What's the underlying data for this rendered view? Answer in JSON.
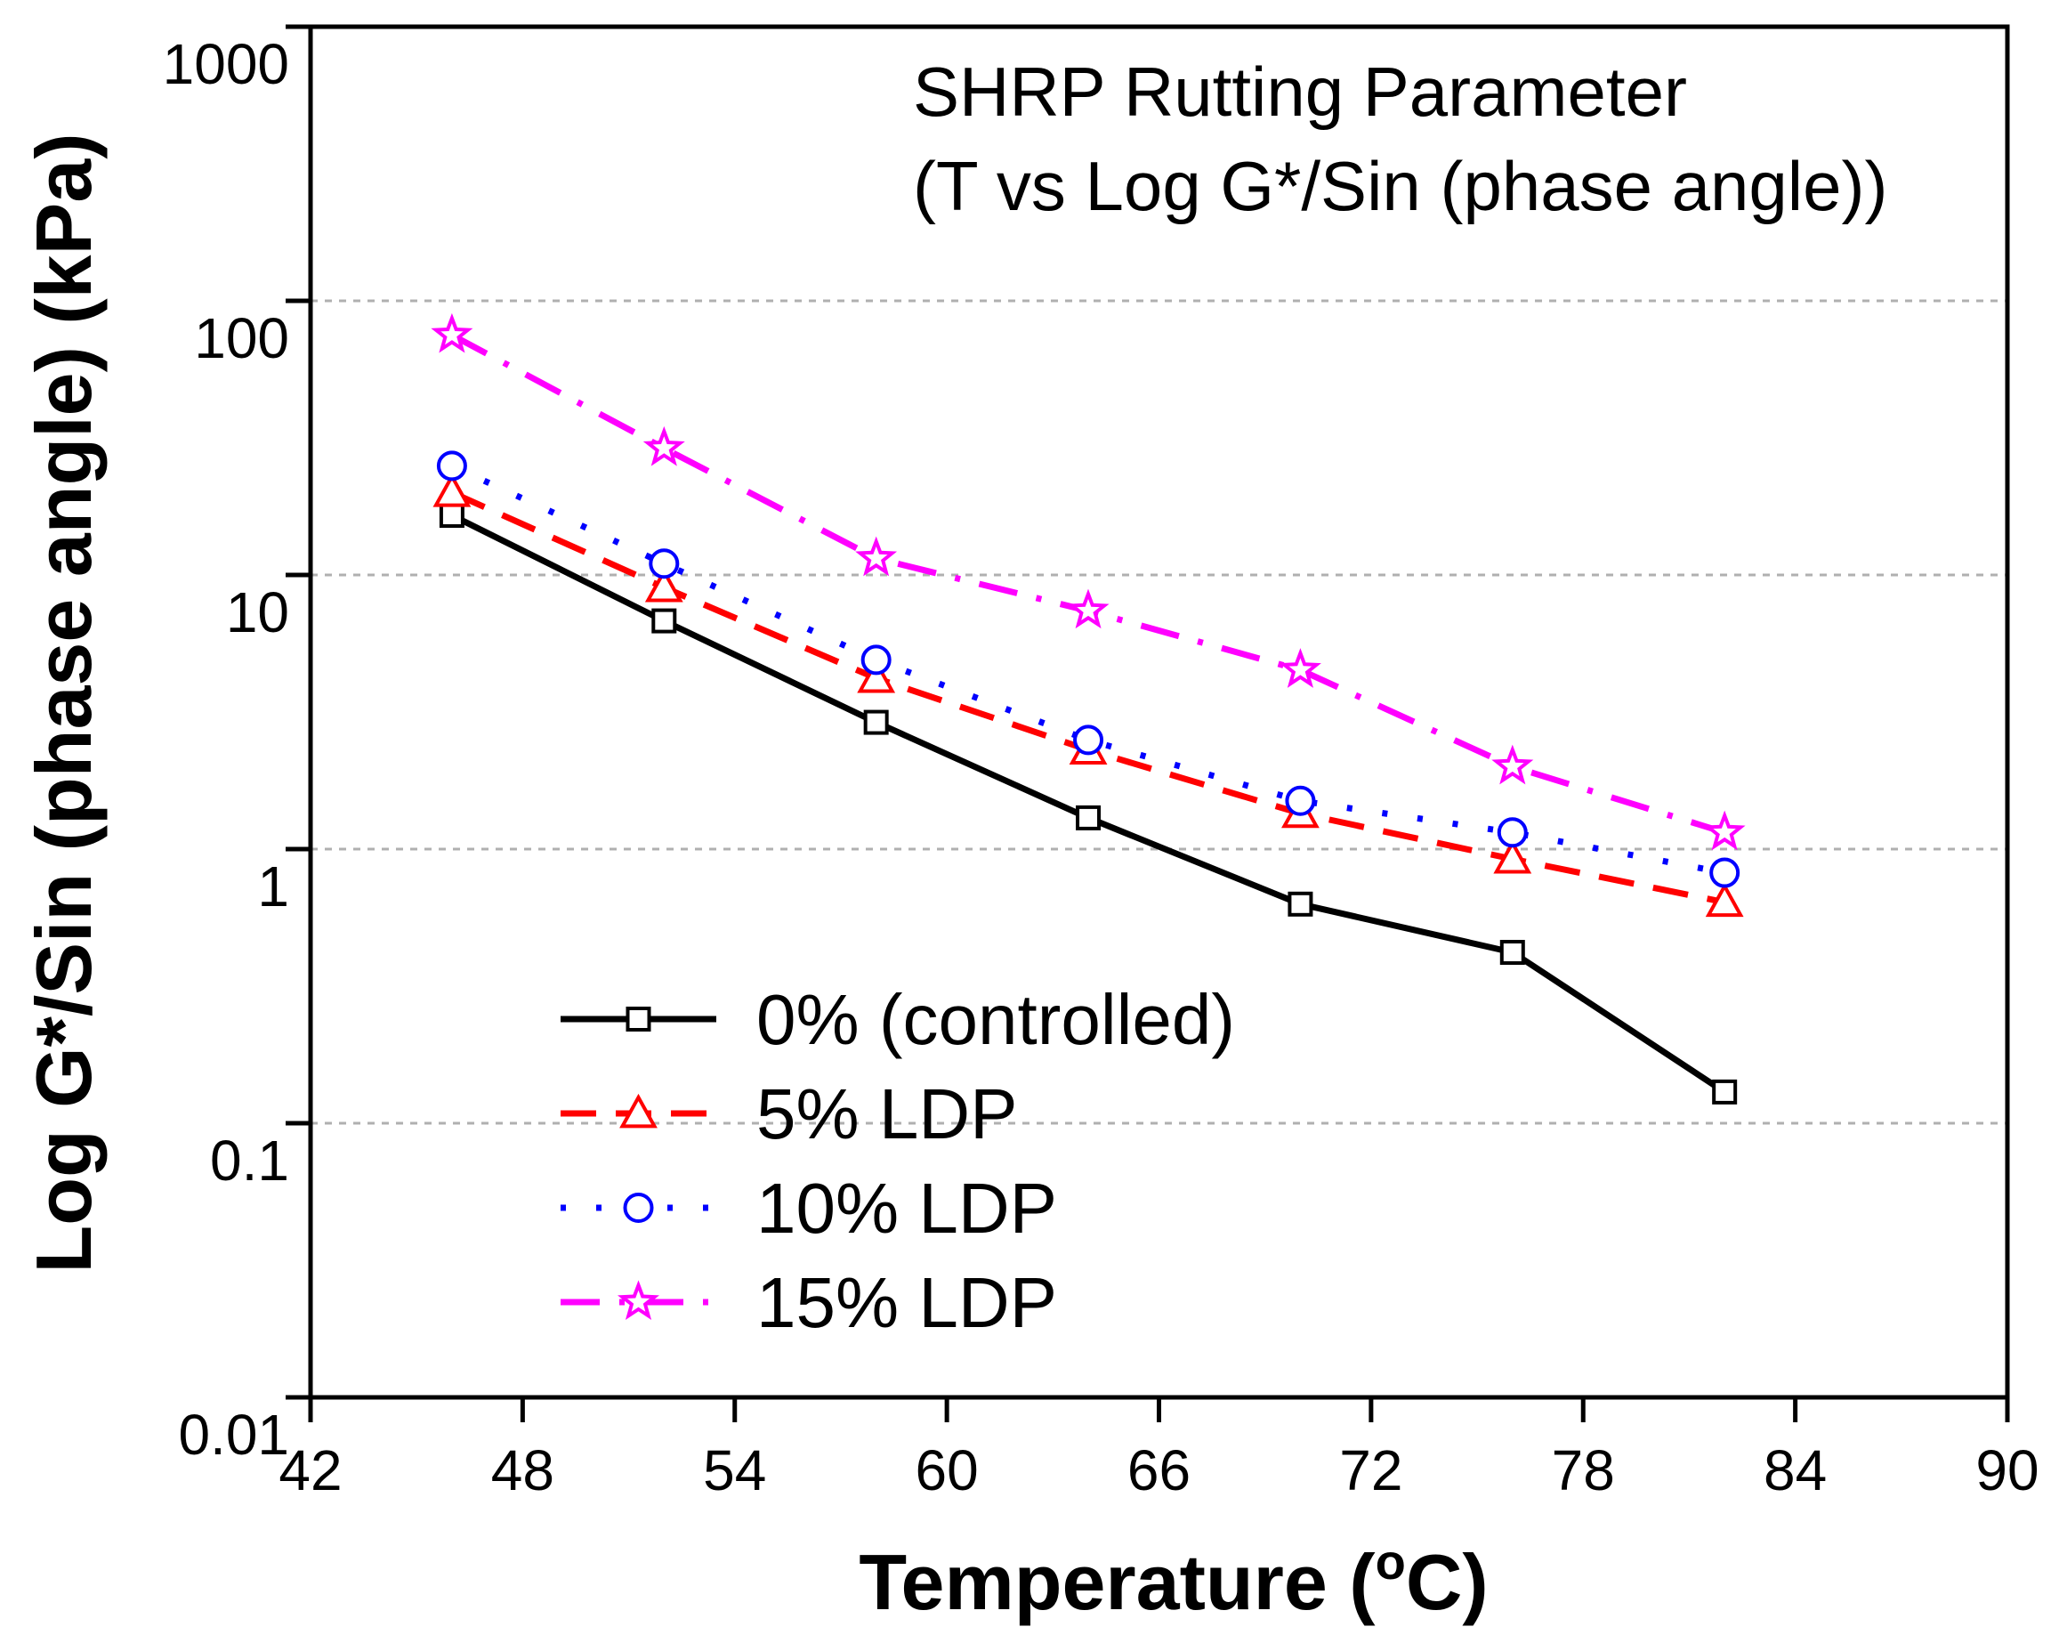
{
  "chart_data": {
    "type": "line",
    "title": "SHRP Rutting Parameter",
    "subtitle": "(T vs Log G*/Sin (phase angle))",
    "xlabel_main": "Temperature (",
    "xlabel_sup": "o",
    "xlabel_end": "C)",
    "ylabel": "Log G*/Sin (phase angle) (kPa)",
    "x_scale": "linear",
    "y_scale": "log",
    "xlim": [
      42,
      90
    ],
    "ylim": [
      0.01,
      1000
    ],
    "x_ticks": [
      42,
      48,
      54,
      60,
      66,
      72,
      78,
      84,
      90
    ],
    "x_tick_labels": [
      "42",
      "48",
      "54",
      "60",
      "66",
      "72",
      "78",
      "84",
      "90"
    ],
    "y_ticks": [
      0.01,
      0.1,
      1,
      10,
      100,
      1000
    ],
    "y_tick_labels": [
      "0.01",
      "0.1",
      "1",
      "10",
      "100",
      "1000"
    ],
    "grid": "horizontal dashed at major y ticks",
    "legend_position": "bottom-left",
    "x": [
      46,
      52,
      58,
      64,
      70,
      76,
      82
    ],
    "series": [
      {
        "name": "0% (controlled)",
        "values": [
          16.5,
          6.8,
          2.9,
          1.3,
          0.63,
          0.42,
          0.13
        ],
        "color": "#000000",
        "marker": "square",
        "line_style": "solid"
      },
      {
        "name": "5% LDP",
        "values": [
          20,
          9,
          4.2,
          2.3,
          1.35,
          0.92,
          0.64
        ],
        "color": "#ff0000",
        "marker": "triangle",
        "line_style": "dashed"
      },
      {
        "name": "10% LDP",
        "values": [
          25,
          11,
          4.9,
          2.5,
          1.5,
          1.15,
          0.82
        ],
        "color": "#0000ff",
        "marker": "circle",
        "line_style": "dotted"
      },
      {
        "name": "15% LDP",
        "values": [
          75,
          29,
          11.5,
          7.4,
          4.5,
          2.0,
          1.15
        ],
        "color": "#ff00ff",
        "marker": "star",
        "line_style": "dash-dot"
      }
    ]
  }
}
